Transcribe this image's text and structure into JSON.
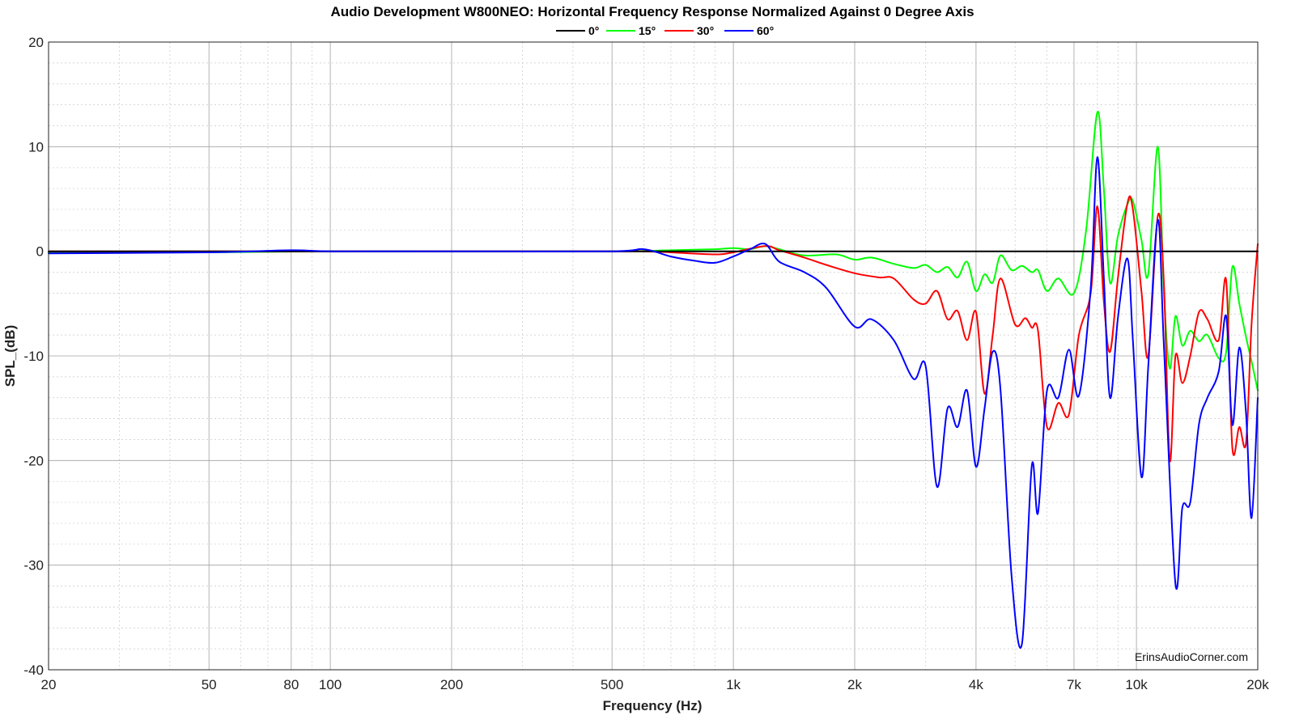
{
  "chart_data": {
    "type": "line",
    "title": "Audio Development W800NEO: Horizontal Frequency Response Normalized Against 0 Degree Axis",
    "xlabel": "Frequency (Hz)",
    "ylabel": "SPL_(dB)",
    "x_scale": "log",
    "xlim": [
      20,
      20000
    ],
    "ylim": [
      -40,
      20
    ],
    "x_ticks": [
      {
        "value": 20,
        "label": "20"
      },
      {
        "value": 50,
        "label": "50"
      },
      {
        "value": 80,
        "label": "80"
      },
      {
        "value": 100,
        "label": "100"
      },
      {
        "value": 200,
        "label": "200"
      },
      {
        "value": 500,
        "label": "500"
      },
      {
        "value": 1000,
        "label": "1k"
      },
      {
        "value": 2000,
        "label": "2k"
      },
      {
        "value": 4000,
        "label": "4k"
      },
      {
        "value": 7000,
        "label": "7k"
      },
      {
        "value": 10000,
        "label": "10k"
      },
      {
        "value": 20000,
        "label": "20k"
      }
    ],
    "y_ticks": [
      {
        "value": 20,
        "label": "20"
      },
      {
        "value": 10,
        "label": "10"
      },
      {
        "value": 0,
        "label": "0"
      },
      {
        "value": -10,
        "label": "-10"
      },
      {
        "value": -20,
        "label": "-20"
      },
      {
        "value": -30,
        "label": "-30"
      },
      {
        "value": -40,
        "label": "-40"
      }
    ],
    "grid": true,
    "legend_position": "top-center",
    "annotation": "ErinsAudioCorner.com",
    "series": [
      {
        "name": "0°",
        "color": "#000000",
        "points": [
          [
            20,
            0
          ],
          [
            20000,
            0
          ]
        ]
      },
      {
        "name": "15°",
        "color": "#00ff00",
        "points": [
          [
            20,
            -0.1
          ],
          [
            50,
            -0.1
          ],
          [
            100,
            0
          ],
          [
            200,
            0
          ],
          [
            500,
            0
          ],
          [
            700,
            0.1
          ],
          [
            900,
            0.2
          ],
          [
            1000,
            0.3
          ],
          [
            1100,
            0.2
          ],
          [
            1200,
            0.5
          ],
          [
            1300,
            0.2
          ],
          [
            1500,
            -0.4
          ],
          [
            1800,
            -0.3
          ],
          [
            2000,
            -0.8
          ],
          [
            2200,
            -0.6
          ],
          [
            2500,
            -1.2
          ],
          [
            2800,
            -1.6
          ],
          [
            3000,
            -1.3
          ],
          [
            3200,
            -2.0
          ],
          [
            3400,
            -1.5
          ],
          [
            3600,
            -2.5
          ],
          [
            3800,
            -1.0
          ],
          [
            4000,
            -3.8
          ],
          [
            4200,
            -2.2
          ],
          [
            4400,
            -3.0
          ],
          [
            4600,
            -0.4
          ],
          [
            4900,
            -1.8
          ],
          [
            5200,
            -1.4
          ],
          [
            5500,
            -2.0
          ],
          [
            5700,
            -1.8
          ],
          [
            6000,
            -3.8
          ],
          [
            6400,
            -2.6
          ],
          [
            7000,
            -4.0
          ],
          [
            7500,
            2.0
          ],
          [
            8000,
            13.3
          ],
          [
            8300,
            6.0
          ],
          [
            8600,
            -3.0
          ],
          [
            9000,
            1.5
          ],
          [
            9500,
            4.5
          ],
          [
            9800,
            4.8
          ],
          [
            10300,
            1.0
          ],
          [
            10700,
            -2.2
          ],
          [
            11300,
            10.0
          ],
          [
            11700,
            -4.0
          ],
          [
            12100,
            -11.2
          ],
          [
            12500,
            -6.2
          ],
          [
            13000,
            -9.0
          ],
          [
            13600,
            -7.6
          ],
          [
            14300,
            -8.6
          ],
          [
            15000,
            -8.0
          ],
          [
            16000,
            -10.2
          ],
          [
            16700,
            -9.6
          ],
          [
            17300,
            -1.5
          ],
          [
            18000,
            -5.0
          ],
          [
            18700,
            -8.2
          ],
          [
            19300,
            -10.5
          ],
          [
            20000,
            -13.3
          ]
        ]
      },
      {
        "name": "30°",
        "color": "#ff0000",
        "points": [
          [
            20,
            0
          ],
          [
            50,
            0
          ],
          [
            100,
            0
          ],
          [
            200,
            0
          ],
          [
            500,
            0
          ],
          [
            600,
            0
          ],
          [
            700,
            -0.1
          ],
          [
            900,
            -0.3
          ],
          [
            1000,
            -0.1
          ],
          [
            1200,
            0.5
          ],
          [
            1300,
            0.1
          ],
          [
            1500,
            -0.6
          ],
          [
            1700,
            -1.3
          ],
          [
            2000,
            -2.1
          ],
          [
            2300,
            -2.5
          ],
          [
            2500,
            -2.6
          ],
          [
            2800,
            -4.6
          ],
          [
            3000,
            -5.0
          ],
          [
            3200,
            -3.8
          ],
          [
            3400,
            -6.5
          ],
          [
            3600,
            -5.7
          ],
          [
            3800,
            -8.5
          ],
          [
            4000,
            -5.8
          ],
          [
            4200,
            -13.6
          ],
          [
            4400,
            -8.0
          ],
          [
            4600,
            -2.6
          ],
          [
            5000,
            -7.0
          ],
          [
            5300,
            -6.4
          ],
          [
            5500,
            -7.3
          ],
          [
            5700,
            -7.6
          ],
          [
            6000,
            -16.8
          ],
          [
            6400,
            -14.5
          ],
          [
            6800,
            -15.6
          ],
          [
            7200,
            -8.0
          ],
          [
            7700,
            -4.0
          ],
          [
            8000,
            4.3
          ],
          [
            8300,
            -4.8
          ],
          [
            8600,
            -9.6
          ],
          [
            9000,
            -2.5
          ],
          [
            9500,
            4.6
          ],
          [
            9800,
            4.0
          ],
          [
            10300,
            -4.0
          ],
          [
            10700,
            -10.0
          ],
          [
            11300,
            3.4
          ],
          [
            11700,
            -3.0
          ],
          [
            12100,
            -20.0
          ],
          [
            12500,
            -10.0
          ],
          [
            13000,
            -12.6
          ],
          [
            13600,
            -10.0
          ],
          [
            14300,
            -5.8
          ],
          [
            15000,
            -6.5
          ],
          [
            16000,
            -8.5
          ],
          [
            16700,
            -2.8
          ],
          [
            17300,
            -18.8
          ],
          [
            18000,
            -16.8
          ],
          [
            18700,
            -18.3
          ],
          [
            19300,
            -7.0
          ],
          [
            20000,
            0.7
          ]
        ]
      },
      {
        "name": "60°",
        "color": "#0000ff",
        "points": [
          [
            20,
            -0.2
          ],
          [
            50,
            -0.1
          ],
          [
            80,
            0.1
          ],
          [
            100,
            0
          ],
          [
            200,
            0
          ],
          [
            500,
            0
          ],
          [
            600,
            0.2
          ],
          [
            700,
            -0.5
          ],
          [
            800,
            -0.9
          ],
          [
            900,
            -1.1
          ],
          [
            1000,
            -0.5
          ],
          [
            1100,
            0.2
          ],
          [
            1200,
            0.7
          ],
          [
            1300,
            -1.0
          ],
          [
            1500,
            -2.0
          ],
          [
            1700,
            -3.5
          ],
          [
            2000,
            -7.2
          ],
          [
            2200,
            -6.5
          ],
          [
            2500,
            -8.5
          ],
          [
            2800,
            -12.2
          ],
          [
            3000,
            -11.0
          ],
          [
            3200,
            -22.5
          ],
          [
            3400,
            -15.0
          ],
          [
            3600,
            -16.8
          ],
          [
            3800,
            -13.3
          ],
          [
            4000,
            -20.6
          ],
          [
            4200,
            -15.0
          ],
          [
            4400,
            -9.6
          ],
          [
            4600,
            -13.2
          ],
          [
            4900,
            -31.0
          ],
          [
            5200,
            -37.5
          ],
          [
            5500,
            -20.5
          ],
          [
            5700,
            -25.0
          ],
          [
            6000,
            -13.3
          ],
          [
            6400,
            -14.0
          ],
          [
            6800,
            -9.4
          ],
          [
            7200,
            -13.8
          ],
          [
            7700,
            -3.5
          ],
          [
            8000,
            9.0
          ],
          [
            8300,
            -2.5
          ],
          [
            8600,
            -14.0
          ],
          [
            9000,
            -6.3
          ],
          [
            9500,
            -0.7
          ],
          [
            9800,
            -8.5
          ],
          [
            10300,
            -21.6
          ],
          [
            10700,
            -11.0
          ],
          [
            11300,
            3.0
          ],
          [
            11700,
            -9.0
          ],
          [
            12500,
            -31.8
          ],
          [
            13000,
            -24.5
          ],
          [
            13600,
            -24.0
          ],
          [
            14300,
            -16.5
          ],
          [
            15000,
            -14.0
          ],
          [
            16000,
            -11.5
          ],
          [
            16700,
            -6.2
          ],
          [
            17300,
            -16.6
          ],
          [
            18000,
            -9.2
          ],
          [
            18700,
            -15.5
          ],
          [
            19300,
            -25.5
          ],
          [
            20000,
            -14.0
          ]
        ]
      }
    ]
  }
}
